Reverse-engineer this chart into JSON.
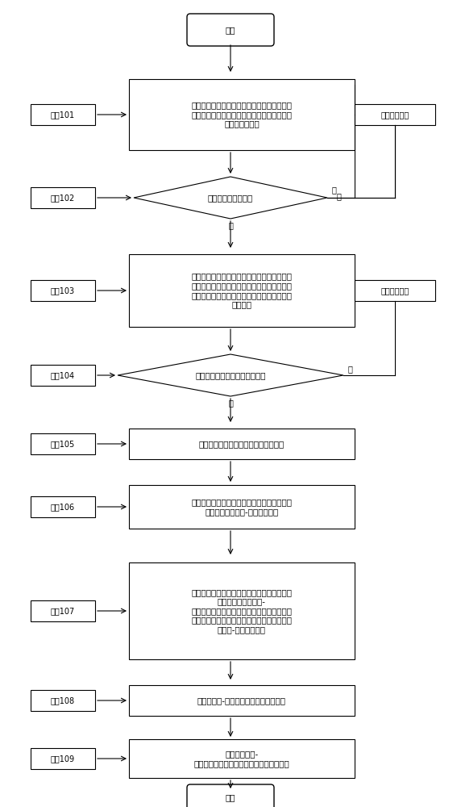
{
  "bg_color": "#ffffff",
  "font_size": 7.5,
  "small_font_size": 7.0,
  "start_text": "开始",
  "end_text": "结束",
  "step101_label": "步骤101",
  "step101_text": "整车控制器、驱动电机控制器、动力电池控制\n器、内燃机控制器以及导航系统分别对各自的\n子系统进行自检",
  "fault_text": "故障处理机制",
  "step102_label": "步骤102",
  "step102_text": "各系统处于就绪状态",
  "step103_label": "步骤103",
  "step103_text": "整车控制器通过总线向驱动电机控制器、动力\n电池控制器、内燃机控制器以及导航系统发送\n访问信号，从中获取能量管理策略计算所需的\n信号数据",
  "reget_text": "重新获取数据",
  "step104_label": "步骤104",
  "step104_text": "判断接收到的信号数据是否完整",
  "step105_label": "步骤105",
  "step105_text": "导航系统向驾驶模型提供行程驾驶信息",
  "step106_label": "步骤106",
  "step106_text": "驾驶模型根据导航系统提供的行程驾驶信息计\n算整个行程的速度-里程向量空间",
  "step107_label": "步骤107",
  "step107_text": "根据接收到的能量管理策略计算所需的信号数\n据和整个行程的速度-\n里程向量空间，以整个行程内油耗最小为目标\n利用最优控制理论和哈密顿函数求解，得到输\n出扭矩-功率分配组合",
  "step108_label": "步骤108",
  "step108_text": "对输出扭矩-功率分配组合进行调整修正",
  "step109_label": "步骤109",
  "step109_text": "发送输出扭矩-\n功率分配组合，完成各能量源输出功率分配",
  "yes_text": "是",
  "no_text": "否"
}
